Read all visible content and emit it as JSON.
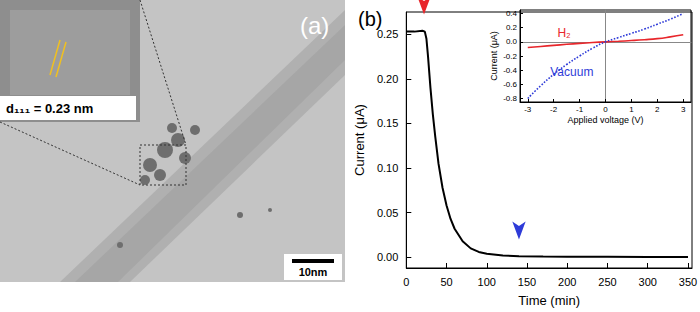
{
  "panel_a": {
    "label": "(a)",
    "inset_text": "d₁₁₁ = 0.23 nm",
    "scale_bar": "10nm"
  },
  "chart_data": [
    {
      "type": "line",
      "title": "(b)",
      "x_label": "Time (min)",
      "y_label": "Current (μA)",
      "x": [
        0,
        10,
        20,
        23,
        25,
        27,
        30,
        33,
        36,
        40,
        45,
        50,
        55,
        60,
        70,
        80,
        90,
        100,
        120,
        140,
        170,
        200,
        250,
        300,
        350
      ],
      "series": [
        {
          "color": "#000000",
          "line_style": "solid",
          "values": [
            0.253,
            0.253,
            0.254,
            0.253,
            0.245,
            0.225,
            0.19,
            0.16,
            0.135,
            0.105,
            0.078,
            0.058,
            0.043,
            0.032,
            0.018,
            0.01,
            0.006,
            0.004,
            0.002,
            0.0012,
            0.0008,
            0.0006,
            0.0005,
            0.0004,
            0.0004
          ]
        }
      ],
      "xlim": [
        0,
        355
      ],
      "xticks": [
        0,
        50,
        100,
        150,
        200,
        250,
        300,
        350
      ],
      "ylim": [
        -0.012,
        0.275
      ],
      "yticks": [
        {
          "value": 0,
          "label": "0.00"
        },
        {
          "value": 0.05,
          "label": "0.05"
        },
        {
          "value": 0.1,
          "label": "0.10"
        },
        {
          "value": 0.15,
          "label": "0.15"
        },
        {
          "value": 0.2,
          "label": "0.20"
        },
        {
          "value": 0.25,
          "label": "0.25"
        }
      ],
      "arrows": [
        {
          "x": 22,
          "y": 0.262,
          "color": "#e8262b"
        },
        {
          "x": 140,
          "y": 0.01,
          "color": "#2e3bd8"
        }
      ]
    },
    {
      "type": "line",
      "x_label": "Applied voltage (V)",
      "y_label": "Current (μA)",
      "x": [
        -3,
        -2.5,
        -2,
        -1.5,
        -1,
        -0.5,
        0,
        0.5,
        1,
        1.5,
        2,
        2.5,
        3
      ],
      "series": [
        {
          "color": "#e8262b",
          "line_style": "solid",
          "values": [
            -0.08,
            -0.065,
            -0.05,
            -0.035,
            -0.022,
            -0.01,
            0,
            0.008,
            0.018,
            0.03,
            0.045,
            0.07,
            0.1
          ]
        },
        {
          "color": "#2e3bd8",
          "line_style": "dotted",
          "values": [
            -0.8,
            -0.62,
            -0.46,
            -0.32,
            -0.2,
            -0.09,
            0,
            0.06,
            0.12,
            0.18,
            0.25,
            0.32,
            0.4
          ]
        }
      ],
      "xlim": [
        -3.3,
        3.3
      ],
      "xticks": [
        -3,
        -2,
        -1,
        0,
        1,
        2,
        3
      ],
      "ylim": [
        -0.85,
        0.45
      ],
      "yticks": [
        -0.8,
        -0.6,
        -0.4,
        -0.2,
        {
          "value": 0,
          "label": "0.0"
        },
        0.2,
        0.4
      ],
      "annotations": [
        {
          "text": "H₂",
          "x": -1.6,
          "y": 0.12,
          "color": "#e8262b"
        },
        {
          "text": "Vacuum",
          "x": -1.3,
          "y": -0.42,
          "color": "#2e3bd8"
        }
      ]
    }
  ]
}
